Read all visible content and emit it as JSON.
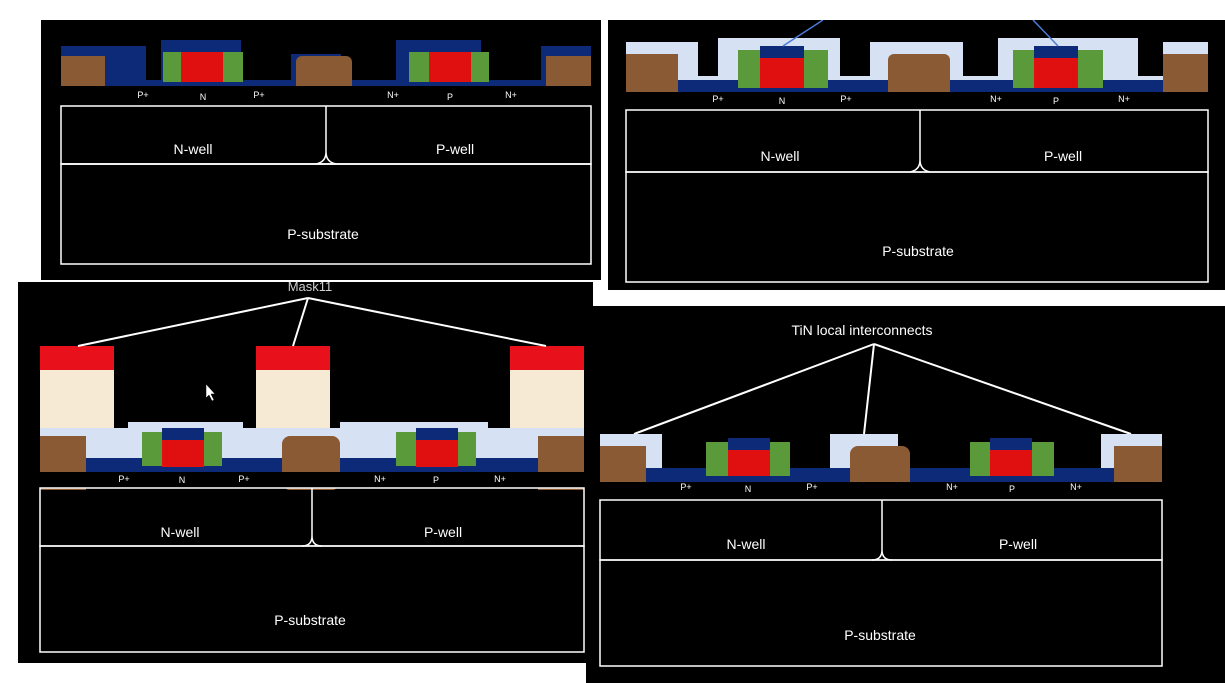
{
  "panels": [
    {
      "nwell": "N-well",
      "pwell": "P-well",
      "substrate": "P-substrate",
      "pmos_sd": [
        "P+",
        "P+"
      ],
      "nmos_sd": [
        "N+",
        "N+"
      ],
      "pmos_body": "N",
      "nmos_body": "P"
    },
    {
      "nwell": "N-well",
      "pwell": "P-well",
      "substrate": "P-substrate",
      "pmos_sd": [
        "P+",
        "P+"
      ],
      "nmos_sd": [
        "N+",
        "N+"
      ],
      "pmos_body": "N",
      "nmos_body": "P"
    },
    {
      "callout": "Mask11",
      "nwell": "N-well",
      "pwell": "P-well",
      "substrate": "P-substrate",
      "pmos_sd": [
        "P+",
        "P+"
      ],
      "nmos_sd": [
        "N+",
        "N+"
      ],
      "pmos_body": "N",
      "nmos_body": "P"
    },
    {
      "callout": "TiN local interconnects",
      "nwell": "N-well",
      "pwell": "P-well",
      "substrate": "P-substrate",
      "pmos_sd": [
        "P+",
        "P+"
      ],
      "nmos_sd": [
        "N+",
        "N+"
      ],
      "pmos_body": "N",
      "nmos_body": "P"
    }
  ],
  "colors": {
    "background": "#000000",
    "oxide_blue": "#0d2a78",
    "light_oxide": "#d6e2f4",
    "gate_red": "#e01010",
    "spacer_green": "#5a9a3a",
    "sti_brown": "#8a5a34",
    "mask_cream": "#f6ead4",
    "mask_red": "#e8101a",
    "outline": "#ffffff"
  },
  "icons": [
    "mouse-cursor-icon"
  ]
}
